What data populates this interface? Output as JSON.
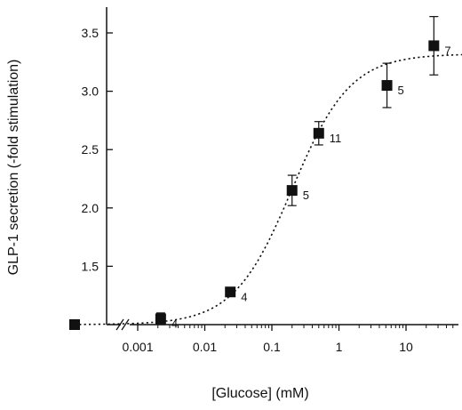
{
  "chart_data": {
    "type": "scatter",
    "xlabel": "[Glucose] (mM)",
    "ylabel": "GLP-1 secretion (-fold stimulation)",
    "x_scale": "log",
    "x_ticks": [
      0.001,
      0.01,
      0.1,
      1,
      10
    ],
    "x_tick_labels": [
      "0.001",
      "0.01",
      "0.1",
      "1",
      "10"
    ],
    "y_ticks": [
      1.5,
      2.0,
      2.5,
      3.0,
      3.5
    ],
    "y_tick_labels": [
      "1.5",
      "2.0",
      "2.5",
      "3.0",
      "3.5"
    ],
    "ylim": [
      1.0,
      3.7
    ],
    "axis_break": true,
    "zero_point": {
      "x": 0,
      "y": 1.0
    },
    "points": [
      {
        "x": 0.0022,
        "y": 1.05,
        "err": 0.05,
        "n": "4"
      },
      {
        "x": 0.024,
        "y": 1.28,
        "err": 0.0,
        "n": "4"
      },
      {
        "x": 0.2,
        "y": 2.15,
        "err": 0.13,
        "n": "5"
      },
      {
        "x": 0.5,
        "y": 2.64,
        "err": 0.1,
        "n": "11"
      },
      {
        "x": 5.2,
        "y": 3.05,
        "err": 0.19,
        "n": "5"
      },
      {
        "x": 26,
        "y": 3.39,
        "err": 0.25,
        "n": "7"
      }
    ],
    "fit_curve": {
      "style": "dotted",
      "bottom": 1.0,
      "top": 3.32,
      "ec50": 0.2,
      "hill": 1.0
    }
  }
}
